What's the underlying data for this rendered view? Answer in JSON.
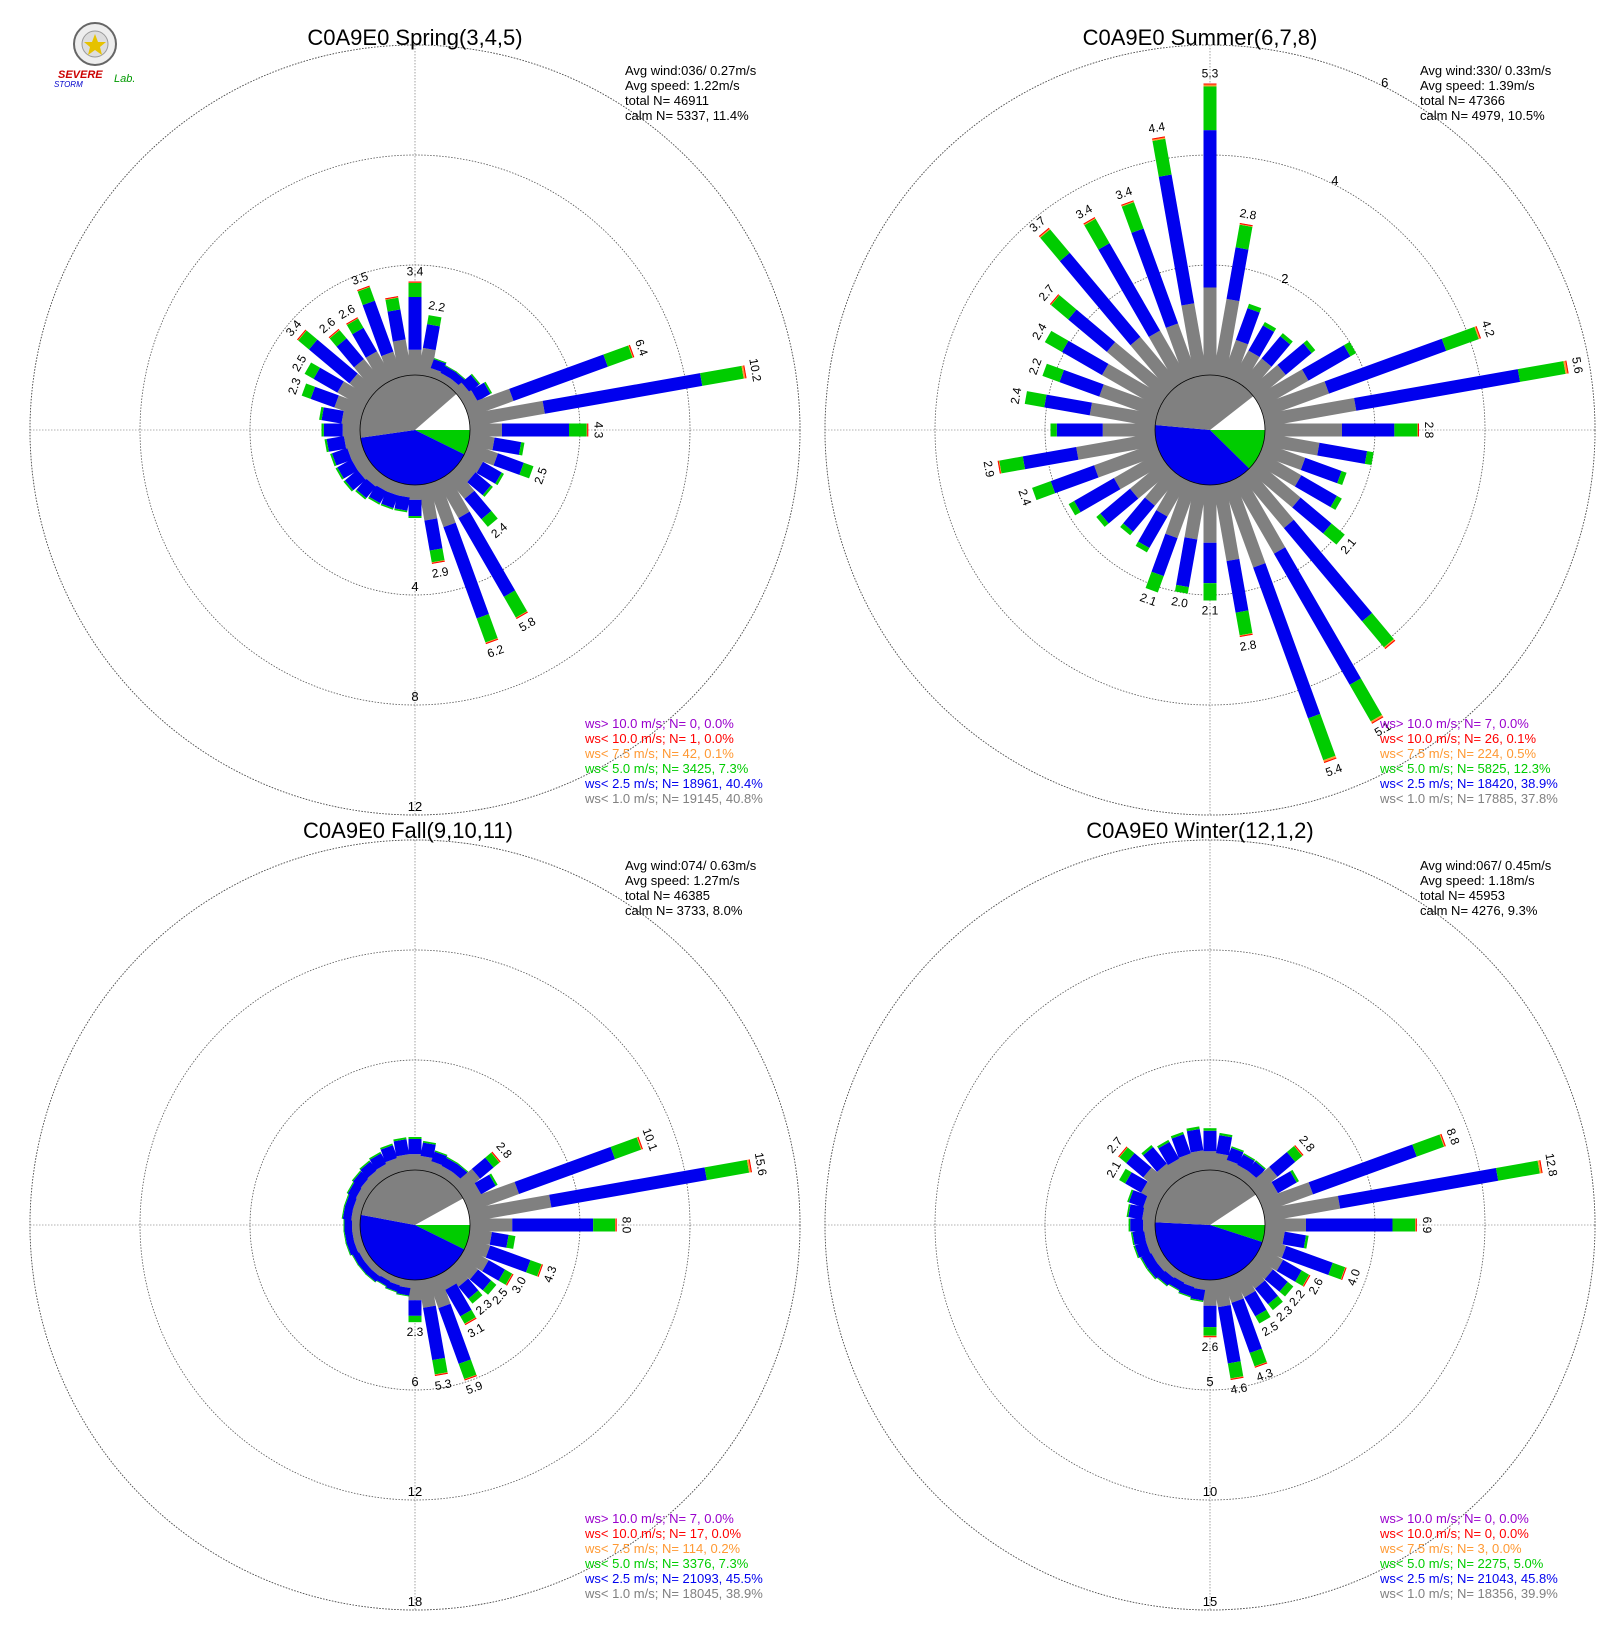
{
  "logo": {
    "text1": "SEVERE",
    "text2": "STORM",
    "text3": "Lab."
  },
  "legend_colors": {
    "gt10": "#9900cc",
    "lt10": "#ff0000",
    "lt75": "#ff9933",
    "lt50": "#00cc00",
    "lt25": "#0000ee",
    "lt10calm": "#808080"
  },
  "chart_data": [
    {
      "type": "windrose",
      "title": "C0A9E0 Spring(3,4,5)",
      "stats": [
        "Avg wind:036/ 0.27m/s",
        "Avg speed: 1.22m/s",
        "total N=      46911",
        "calm N=   5337,  11.4%"
      ],
      "rings": [
        4,
        8,
        12
      ],
      "ring_labels": [
        "4",
        "8",
        "12"
      ],
      "calm_pie": {
        "gray": 40.8,
        "blue": 40.4,
        "green": 7.3,
        "white": 11.4
      },
      "bars": [
        {
          "dir": 0,
          "total": 3.4,
          "label": "3.4"
        },
        {
          "dir": 10,
          "total": 2.2,
          "label": "2.2"
        },
        {
          "dir": 20,
          "total": 0.7
        },
        {
          "dir": 30,
          "total": 0.6
        },
        {
          "dir": 40,
          "total": 0.6
        },
        {
          "dir": 50,
          "total": 0.9
        },
        {
          "dir": 60,
          "total": 1.1
        },
        {
          "dir": 70,
          "total": 6.4,
          "label": "6.4"
        },
        {
          "dir": 80,
          "total": 10.2,
          "label": "10.2"
        },
        {
          "dir": 90,
          "total": 4.3,
          "label": "4.3"
        },
        {
          "dir": 100,
          "total": 2.0
        },
        {
          "dir": 110,
          "total": 2.5,
          "label": "2.5"
        },
        {
          "dir": 120,
          "total": 1.6
        },
        {
          "dir": 130,
          "total": 1.5
        },
        {
          "dir": 140,
          "total": 2.4,
          "label": "2.4"
        },
        {
          "dir": 150,
          "total": 5.8,
          "label": "5.8"
        },
        {
          "dir": 160,
          "total": 6.2,
          "label": "6.2"
        },
        {
          "dir": 170,
          "total": 2.9,
          "label": "2.9"
        },
        {
          "dir": 180,
          "total": 1.2
        },
        {
          "dir": 190,
          "total": 1.0
        },
        {
          "dir": 200,
          "total": 1.0
        },
        {
          "dir": 210,
          "total": 1.0
        },
        {
          "dir": 220,
          "total": 1.1
        },
        {
          "dir": 230,
          "total": 1.2
        },
        {
          "dir": 240,
          "total": 1.2
        },
        {
          "dir": 250,
          "total": 1.2
        },
        {
          "dir": 260,
          "total": 1.3
        },
        {
          "dir": 270,
          "total": 1.4
        },
        {
          "dir": 280,
          "total": 1.5
        },
        {
          "dir": 290,
          "total": 2.3,
          "label": "2.3"
        },
        {
          "dir": 300,
          "total": 2.5,
          "label": "2.5"
        },
        {
          "dir": 310,
          "total": 3.4,
          "label": "3.4"
        },
        {
          "dir": 320,
          "total": 2.6,
          "label": "2.6"
        },
        {
          "dir": 330,
          "total": 2.6,
          "label": "2.6"
        },
        {
          "dir": 340,
          "total": 3.5,
          "label": "3.5"
        },
        {
          "dir": 350,
          "total": 2.9
        }
      ],
      "legend": [
        "ws> 10.0 m/s; N=     0,  0.0%",
        "ws< 10.0 m/s; N=     1,  0.0%",
        "ws<  7.5 m/s; N=    42,  0.1%",
        "ws<  5.0 m/s; N=  3425,  7.3%",
        "ws<  2.5 m/s; N= 18961, 40.4%",
        "ws<  1.0 m/s; N= 19145, 40.8%"
      ]
    },
    {
      "type": "windrose",
      "title": "C0A9E0 Summer(6,7,8)",
      "stats": [
        "Avg wind:330/ 0.33m/s",
        "Avg speed: 1.39m/s",
        "total N=      47366",
        "calm N=   4979,  10.5%"
      ],
      "rings": [
        2,
        4,
        6
      ],
      "ring_labels": [
        "2",
        "4",
        "6"
      ],
      "calm_pie": {
        "gray": 37.8,
        "blue": 38.9,
        "green": 12.3,
        "white": 10.5
      },
      "bars": [
        {
          "dir": 0,
          "total": 5.3,
          "label": "5.3"
        },
        {
          "dir": 10,
          "total": 2.8,
          "label": "2.8"
        },
        {
          "dir": 20,
          "total": 1.4
        },
        {
          "dir": 30,
          "total": 1.2
        },
        {
          "dir": 40,
          "total": 1.2
        },
        {
          "dir": 50,
          "total": 1.4
        },
        {
          "dir": 60,
          "total": 2.0
        },
        {
          "dir": 70,
          "total": 4.2,
          "label": "4.2"
        },
        {
          "dir": 80,
          "total": 5.6,
          "label": "5.6"
        },
        {
          "dir": 90,
          "total": 2.8,
          "label": "2.8"
        },
        {
          "dir": 100,
          "total": 2.0
        },
        {
          "dir": 110,
          "total": 1.6
        },
        {
          "dir": 120,
          "total": 1.7
        },
        {
          "dir": 130,
          "total": 2.1,
          "label": "2.1"
        },
        {
          "dir": 140,
          "total": 4.1
        },
        {
          "dir": 150,
          "total": 5.1,
          "label": "5.1"
        },
        {
          "dir": 160,
          "total": 5.4,
          "label": "5.4"
        },
        {
          "dir": 170,
          "total": 2.8,
          "label": "2.8"
        },
        {
          "dir": 180,
          "total": 2.1,
          "label": "2.1"
        },
        {
          "dir": 190,
          "total": 2.0,
          "label": "2.0"
        },
        {
          "dir": 200,
          "total": 2.1,
          "label": "2.1"
        },
        {
          "dir": 210,
          "total": 1.5
        },
        {
          "dir": 220,
          "total": 1.4
        },
        {
          "dir": 230,
          "total": 1.6
        },
        {
          "dir": 240,
          "total": 1.9
        },
        {
          "dir": 250,
          "total": 2.4,
          "label": "2.4"
        },
        {
          "dir": 260,
          "total": 2.9,
          "label": "2.9"
        },
        {
          "dir": 270,
          "total": 1.9
        },
        {
          "dir": 280,
          "total": 2.4,
          "label": "2.4"
        },
        {
          "dir": 290,
          "total": 2.2,
          "label": "2.2"
        },
        {
          "dir": 300,
          "total": 2.4,
          "label": "2.4"
        },
        {
          "dir": 310,
          "total": 2.7,
          "label": "2.7"
        },
        {
          "dir": 320,
          "total": 3.7,
          "label": "3.7"
        },
        {
          "dir": 330,
          "total": 3.4,
          "label": "3.4"
        },
        {
          "dir": 340,
          "total": 3.4,
          "label": "3.4"
        },
        {
          "dir": 350,
          "total": 4.4,
          "label": "4.4"
        }
      ],
      "legend": [
        "ws> 10.0 m/s; N=     7,  0.0%",
        "ws< 10.0 m/s; N=    26,  0.1%",
        "ws<  7.5 m/s; N=   224,  0.5%",
        "ws<  5.0 m/s; N=  5825, 12.3%",
        "ws<  2.5 m/s; N= 18420, 38.9%",
        "ws<  1.0 m/s; N= 17885, 37.8%"
      ]
    },
    {
      "type": "windrose",
      "title": "C0A9E0 Fall(9,10,11)",
      "stats": [
        "Avg wind:074/ 0.63m/s",
        "Avg speed: 1.27m/s",
        "total N=      46385",
        "calm N=   3733,   8.0%"
      ],
      "rings": [
        6,
        12,
        18
      ],
      "ring_labels": [
        "6",
        "12",
        "18"
      ],
      "calm_pie": {
        "gray": 38.9,
        "blue": 45.5,
        "green": 7.3,
        "white": 8.0
      },
      "bars": [
        {
          "dir": 0,
          "total": 1.8
        },
        {
          "dir": 10,
          "total": 1.6
        },
        {
          "dir": 20,
          "total": 1.2
        },
        {
          "dir": 30,
          "total": 1.1
        },
        {
          "dir": 40,
          "total": 1.1
        },
        {
          "dir": 50,
          "total": 2.8,
          "label": "2.8"
        },
        {
          "dir": 60,
          "total": 2.0
        },
        {
          "dir": 70,
          "total": 10.1,
          "label": "10.1"
        },
        {
          "dir": 80,
          "total": 15.6,
          "label": "15.6"
        },
        {
          "dir": 90,
          "total": 8.0,
          "label": "8.0"
        },
        {
          "dir": 100,
          "total": 2.5
        },
        {
          "dir": 110,
          "total": 4.3,
          "label": "4.3"
        },
        {
          "dir": 120,
          "total": 3.0,
          "label": "3.0"
        },
        {
          "dir": 130,
          "total": 2.5,
          "label": "2.5"
        },
        {
          "dir": 140,
          "total": 2.3,
          "label": "2.3"
        },
        {
          "dir": 150,
          "total": 3.1,
          "label": "3.1"
        },
        {
          "dir": 160,
          "total": 5.9,
          "label": "5.9"
        },
        {
          "dir": 170,
          "total": 5.3,
          "label": "5.3"
        },
        {
          "dir": 180,
          "total": 2.3,
          "label": "2.3"
        },
        {
          "dir": 190,
          "total": 0.9
        },
        {
          "dir": 200,
          "total": 0.8
        },
        {
          "dir": 210,
          "total": 0.7
        },
        {
          "dir": 220,
          "total": 0.8
        },
        {
          "dir": 230,
          "total": 0.8
        },
        {
          "dir": 240,
          "total": 0.8
        },
        {
          "dir": 250,
          "total": 0.9
        },
        {
          "dir": 260,
          "total": 0.9
        },
        {
          "dir": 270,
          "total": 0.9
        },
        {
          "dir": 280,
          "total": 1.0
        },
        {
          "dir": 290,
          "total": 1.0
        },
        {
          "dir": 300,
          "total": 1.1
        },
        {
          "dir": 310,
          "total": 1.2
        },
        {
          "dir": 320,
          "total": 1.3
        },
        {
          "dir": 330,
          "total": 1.4
        },
        {
          "dir": 340,
          "total": 1.6
        },
        {
          "dir": 350,
          "total": 1.8
        }
      ],
      "legend": [
        "ws> 10.0 m/s; N=     7,  0.0%",
        "ws< 10.0 m/s; N=    17,  0.0%",
        "ws<  7.5 m/s; N=   114,  0.2%",
        "ws<  5.0 m/s; N=  3376,  7.3%",
        "ws<  2.5 m/s; N= 21093, 45.5%",
        "ws<  1.0 m/s; N= 18045, 38.9%"
      ]
    },
    {
      "type": "windrose",
      "title": "C0A9E0 Winter(12,1,2)",
      "stats": [
        "Avg wind:067/ 0.45m/s",
        "Avg speed: 1.18m/s",
        "total N=      45953",
        "calm N=   4276,   9.3%"
      ],
      "rings": [
        5,
        10,
        15
      ],
      "ring_labels": [
        "5",
        "10",
        "15"
      ],
      "calm_pie": {
        "gray": 39.9,
        "blue": 45.8,
        "green": 5.0,
        "white": 9.3
      },
      "bars": [
        {
          "dir": 0,
          "total": 1.9
        },
        {
          "dir": 10,
          "total": 1.7
        },
        {
          "dir": 20,
          "total": 1.2
        },
        {
          "dir": 30,
          "total": 1.1
        },
        {
          "dir": 40,
          "total": 1.1
        },
        {
          "dir": 50,
          "total": 2.8,
          "label": "2.8"
        },
        {
          "dir": 60,
          "total": 2.0
        },
        {
          "dir": 70,
          "total": 8.8,
          "label": "8.8"
        },
        {
          "dir": 80,
          "total": 12.8,
          "label": "12.8"
        },
        {
          "dir": 90,
          "total": 6.9,
          "label": "6.9"
        },
        {
          "dir": 100,
          "total": 2.0
        },
        {
          "dir": 110,
          "total": 4.0,
          "label": "4.0"
        },
        {
          "dir": 120,
          "total": 2.6,
          "label": "2.6"
        },
        {
          "dir": 130,
          "total": 2.2,
          "label": "2.2"
        },
        {
          "dir": 140,
          "total": 2.3,
          "label": "2.3"
        },
        {
          "dir": 150,
          "total": 2.5,
          "label": "2.5"
        },
        {
          "dir": 160,
          "total": 4.3,
          "label": "4.3"
        },
        {
          "dir": 170,
          "total": 4.6,
          "label": "4.6"
        },
        {
          "dir": 180,
          "total": 2.6,
          "label": "2.6"
        },
        {
          "dir": 190,
          "total": 1.0
        },
        {
          "dir": 200,
          "total": 0.9
        },
        {
          "dir": 210,
          "total": 0.8
        },
        {
          "dir": 220,
          "total": 0.9
        },
        {
          "dir": 230,
          "total": 1.0
        },
        {
          "dir": 240,
          "total": 1.0
        },
        {
          "dir": 250,
          "total": 1.1
        },
        {
          "dir": 260,
          "total": 1.1
        },
        {
          "dir": 270,
          "total": 1.2
        },
        {
          "dir": 280,
          "total": 1.3
        },
        {
          "dir": 290,
          "total": 1.4
        },
        {
          "dir": 300,
          "total": 2.1,
          "label": "2.1"
        },
        {
          "dir": 310,
          "total": 2.7,
          "label": "2.7"
        },
        {
          "dir": 320,
          "total": 2.0
        },
        {
          "dir": 330,
          "total": 1.8
        },
        {
          "dir": 340,
          "total": 1.9
        },
        {
          "dir": 350,
          "total": 2.0
        }
      ],
      "legend": [
        "ws> 10.0 m/s; N=     0,  0.0%",
        "ws< 10.0 m/s; N=     0,  0.0%",
        "ws<  7.5 m/s; N=     3,  0.0%",
        "ws<  5.0 m/s; N=  2275,  5.0%",
        "ws<  2.5 m/s; N= 21043, 45.8%",
        "ws<  1.0 m/s; N= 18356, 39.9%"
      ]
    }
  ]
}
